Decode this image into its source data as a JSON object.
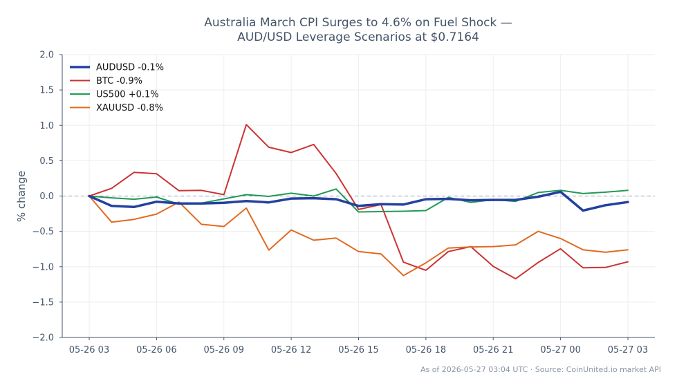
{
  "chart_data": {
    "type": "line",
    "title": [
      "Australia March CPI Surges to 4.6% on Fuel Shock —",
      "AUD/USD Leverage Scenarios at $0.7164"
    ],
    "xlabel": "",
    "ylabel": "% change",
    "ylim": [
      -2.0,
      2.0
    ],
    "yticks": [
      "2.0",
      "1.5",
      "1.0",
      "0.5",
      "0.0",
      "−0.5",
      "−1.0",
      "−1.5",
      "−2.0"
    ],
    "ytick_values": [
      2.0,
      1.5,
      1.0,
      0.5,
      0.0,
      -0.5,
      -1.0,
      -1.5,
      -2.0
    ],
    "xticks": [
      "05-26 03",
      "05-26 06",
      "05-26 09",
      "05-26 12",
      "05-26 15",
      "05-26 18",
      "05-26 21",
      "05-27 00",
      "05-27 03"
    ],
    "x": [
      "05-26 03",
      "05-26 04",
      "05-26 05",
      "05-26 06",
      "05-26 07",
      "05-26 08",
      "05-26 09",
      "05-26 10",
      "05-26 11",
      "05-26 12",
      "05-26 13",
      "05-26 14",
      "05-26 15",
      "05-26 16",
      "05-26 17",
      "05-26 18",
      "05-26 19",
      "05-26 20",
      "05-26 21",
      "05-26 22",
      "05-26 23",
      "05-27 00",
      "05-27 01",
      "05-27 02",
      "05-27 03"
    ],
    "grid": true,
    "legend_position": "top-left",
    "series": [
      {
        "name": "AUDUSD -0.1%",
        "color": "#2440a0",
        "width": 3.5,
        "values": [
          0.0,
          -0.14,
          -0.155,
          -0.08,
          -0.105,
          -0.105,
          -0.095,
          -0.07,
          -0.09,
          -0.035,
          -0.03,
          -0.045,
          -0.14,
          -0.115,
          -0.12,
          -0.045,
          -0.04,
          -0.06,
          -0.055,
          -0.055,
          -0.01,
          0.06,
          -0.205,
          -0.13,
          -0.085
        ]
      },
      {
        "name": "BTC -0.9%",
        "color": "#cc3333",
        "width": 2,
        "values": [
          0.0,
          0.11,
          0.335,
          0.315,
          0.075,
          0.08,
          0.02,
          1.01,
          0.69,
          0.615,
          0.73,
          0.32,
          -0.19,
          -0.12,
          -0.935,
          -1.05,
          -0.785,
          -0.715,
          -0.995,
          -1.17,
          -0.94,
          -0.745,
          -1.015,
          -1.01,
          -0.93
        ]
      },
      {
        "name": "US500 +0.1%",
        "color": "#229955",
        "width": 2,
        "values": [
          0.0,
          -0.025,
          -0.045,
          -0.015,
          -0.115,
          -0.1,
          -0.04,
          0.02,
          -0.005,
          0.04,
          0.0,
          0.1,
          -0.225,
          -0.22,
          -0.215,
          -0.205,
          -0.02,
          -0.09,
          -0.05,
          -0.075,
          0.05,
          0.08,
          0.035,
          0.055,
          0.08
        ]
      },
      {
        "name": "XAUUSD -0.8%",
        "color": "#e06a20",
        "width": 2,
        "values": [
          0.0,
          -0.37,
          -0.33,
          -0.255,
          -0.085,
          -0.4,
          -0.43,
          -0.17,
          -0.765,
          -0.48,
          -0.625,
          -0.595,
          -0.785,
          -0.82,
          -1.125,
          -0.945,
          -0.735,
          -0.72,
          -0.715,
          -0.69,
          -0.5,
          -0.6,
          -0.76,
          -0.795,
          -0.76
        ]
      }
    ]
  },
  "footer": "As of 2026-05-27 03:04 UTC · Source: CoinUnited.io market API"
}
